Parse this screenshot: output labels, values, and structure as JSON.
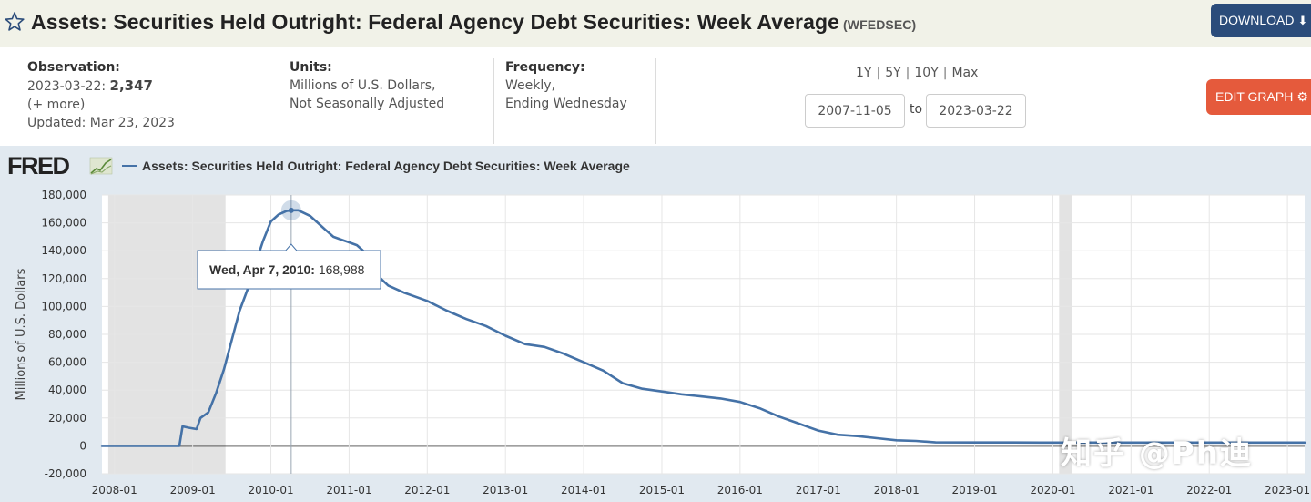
{
  "header": {
    "title": "Assets: Securities Held Outright: Federal Agency Debt Securities: Week Average",
    "series_id": "(WFEDSEC)",
    "download_label": "DOWNLOAD"
  },
  "observation": {
    "label": "Observation:",
    "date": "2023-03-22:",
    "value": "2,347",
    "more": "(+ more)",
    "updated": "Updated: Mar 23, 2023"
  },
  "units": {
    "label": "Units:",
    "line1": "Millions of U.S. Dollars,",
    "line2": "Not Seasonally Adjusted"
  },
  "frequency": {
    "label": "Frequency:",
    "line1": "Weekly,",
    "line2": "Ending Wednesday"
  },
  "range_controls": {
    "options": [
      "1Y",
      "5Y",
      "10Y",
      "Max"
    ],
    "separator": "|",
    "start": "2007-11-05",
    "to_label": "to",
    "end": "2023-03-22"
  },
  "edit_label": "EDIT GRAPH",
  "watermark": "知乎 @Ph迪",
  "colors": {
    "line": "#4572a7",
    "panel": "#e1e9f0",
    "recession": "#e3e3e3",
    "download_button": "#2b4c7a",
    "edit_button": "#e55a3c"
  },
  "chart_data": {
    "type": "line",
    "logo": "FRED",
    "legend": "Assets: Securities Held Outright: Federal Agency Debt Securities: Week Average",
    "ylabel": "Millions of U.S. Dollars",
    "ylim": [
      -20000,
      180000
    ],
    "yticks": [
      -20000,
      0,
      20000,
      40000,
      60000,
      80000,
      100000,
      120000,
      140000,
      160000,
      180000
    ],
    "ytick_labels": [
      "-20,000",
      "0",
      "20,000",
      "40,000",
      "60,000",
      "80,000",
      "100,000",
      "120,000",
      "140,000",
      "160,000",
      "180,000"
    ],
    "xlim": [
      2007.84,
      2023.22
    ],
    "xticks": [
      2008,
      2009,
      2010,
      2011,
      2012,
      2013,
      2014,
      2015,
      2016,
      2017,
      2018,
      2019,
      2020,
      2021,
      2022,
      2023
    ],
    "xtick_labels": [
      "2008-01",
      "2009-01",
      "2010-01",
      "2011-01",
      "2012-01",
      "2013-01",
      "2014-01",
      "2015-01",
      "2016-01",
      "2017-01",
      "2018-01",
      "2019-01",
      "2020-01",
      "2021-01",
      "2022-01",
      "2023-01"
    ],
    "recessions": [
      [
        2007.92,
        2009.42
      ],
      [
        2020.08,
        2020.25
      ]
    ],
    "tooltip": {
      "date_label": "Wed, Apr 7, 2010:",
      "value_label": "168,988",
      "x": 2010.26,
      "y": 168988
    },
    "series": [
      {
        "name": "WFEDSEC",
        "x": [
          2007.84,
          2008.5,
          2008.83,
          2008.87,
          2008.95,
          2009.05,
          2009.1,
          2009.2,
          2009.3,
          2009.4,
          2009.5,
          2009.6,
          2009.7,
          2009.8,
          2009.9,
          2010.0,
          2010.1,
          2010.2,
          2010.26,
          2010.35,
          2010.5,
          2010.6,
          2010.7,
          2010.8,
          2010.9,
          2011.0,
          2011.1,
          2011.2,
          2011.35,
          2011.5,
          2011.7,
          2011.85,
          2012.0,
          2012.25,
          2012.5,
          2012.75,
          2013.0,
          2013.25,
          2013.5,
          2013.75,
          2014.0,
          2014.25,
          2014.5,
          2014.75,
          2015.0,
          2015.25,
          2015.5,
          2015.75,
          2016.0,
          2016.25,
          2016.5,
          2016.75,
          2017.0,
          2017.25,
          2017.5,
          2017.75,
          2018.0,
          2018.25,
          2018.5,
          2019.0,
          2019.5,
          2020.0,
          2020.5,
          2021.0,
          2021.5,
          2022.0,
          2022.5,
          2023.0,
          2023.22
        ],
        "values": [
          0,
          0,
          0,
          14000,
          13000,
          12000,
          20000,
          24000,
          38000,
          55000,
          76000,
          97000,
          112000,
          130000,
          147000,
          161000,
          166000,
          168500,
          168988,
          169000,
          165000,
          160000,
          155000,
          150000,
          148000,
          146000,
          144000,
          139000,
          123000,
          115000,
          110000,
          107000,
          104000,
          97000,
          91000,
          86000,
          79000,
          73000,
          71000,
          66000,
          60000,
          54000,
          45000,
          41000,
          39000,
          37000,
          35500,
          34000,
          31500,
          27000,
          21000,
          16000,
          11000,
          8000,
          7000,
          5500,
          4000,
          3500,
          2500,
          2400,
          2400,
          2350,
          2350,
          2350,
          2350,
          2347,
          2347,
          2347,
          2347
        ]
      }
    ]
  }
}
